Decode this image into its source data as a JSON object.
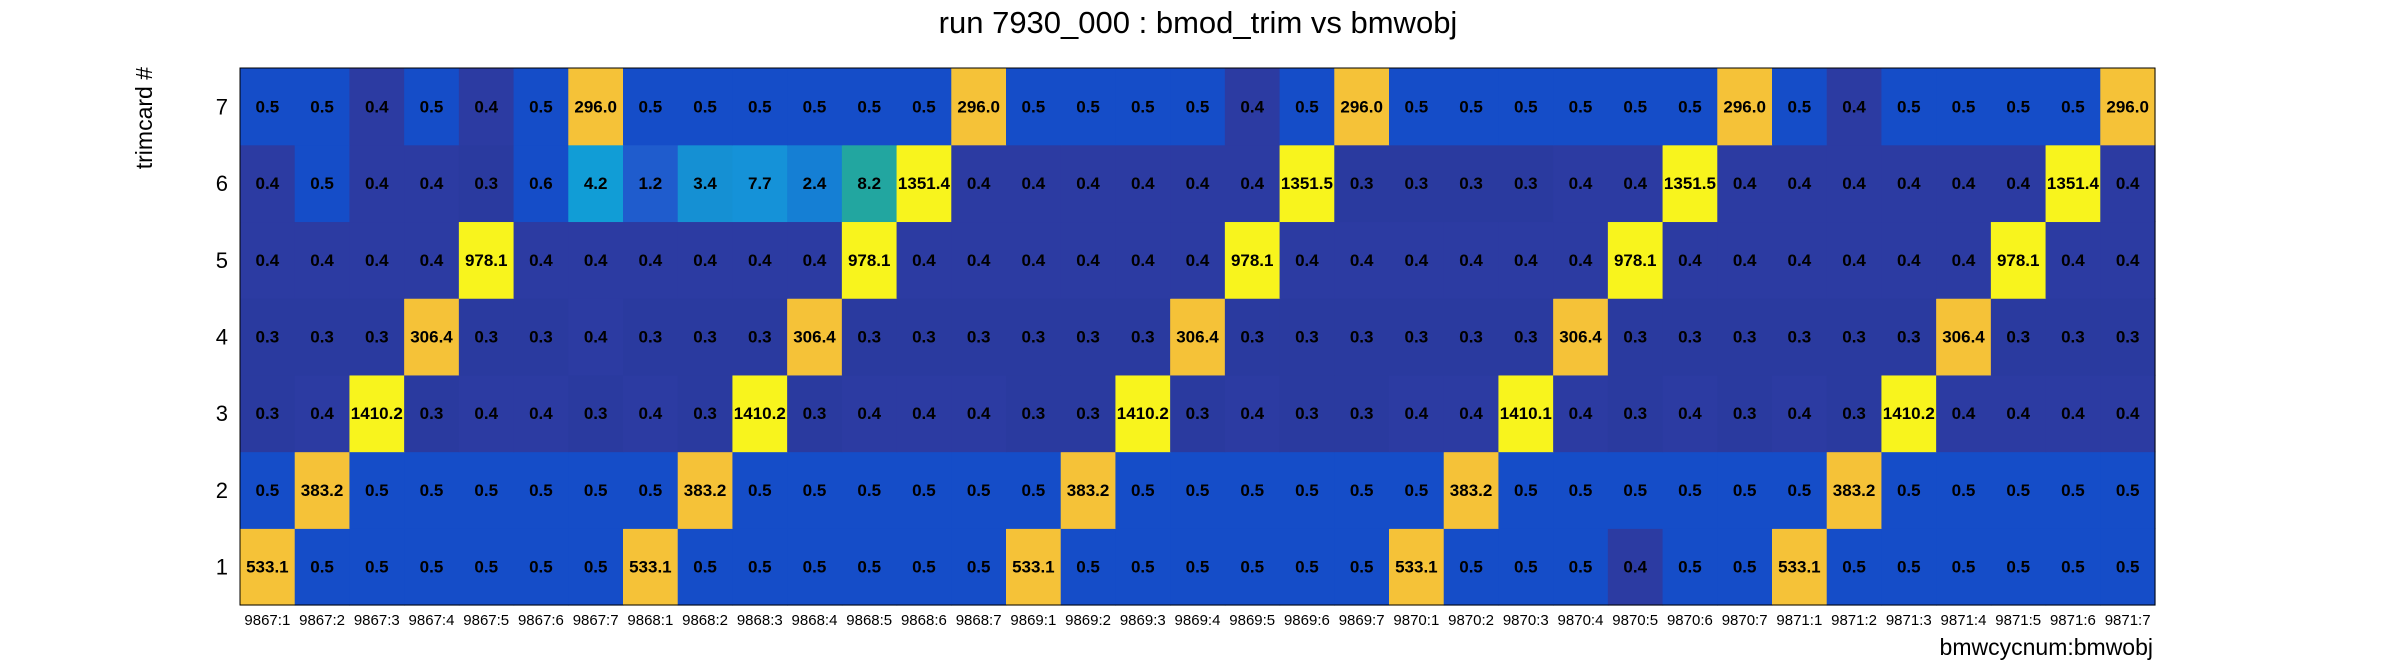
{
  "chart_data": {
    "type": "heatmap",
    "title": "run 7930_000 : bmod_trim vs bmwobj",
    "xlabel": "bmwcycnum:bmwobj",
    "ylabel": "trimcard #",
    "x_categories": [
      "9867:1",
      "9867:2",
      "9867:3",
      "9867:4",
      "9867:5",
      "9867:6",
      "9867:7",
      "9868:1",
      "9868:2",
      "9868:3",
      "9868:4",
      "9868:5",
      "9868:6",
      "9868:7",
      "9869:1",
      "9869:2",
      "9869:3",
      "9869:4",
      "9869:5",
      "9869:6",
      "9869:7",
      "9870:1",
      "9870:2",
      "9870:3",
      "9870:4",
      "9870:5",
      "9870:6",
      "9870:7",
      "9871:1",
      "9871:2",
      "9871:3",
      "9871:4",
      "9871:5",
      "9871:6",
      "9871:7"
    ],
    "y_categories": [
      "1",
      "2",
      "3",
      "4",
      "5",
      "6",
      "7"
    ],
    "values": [
      [
        533.1,
        0.5,
        0.5,
        0.5,
        0.5,
        0.5,
        0.5,
        533.1,
        0.5,
        0.5,
        0.5,
        0.5,
        0.5,
        0.5,
        533.1,
        0.5,
        0.5,
        0.5,
        0.5,
        0.5,
        0.5,
        533.1,
        0.5,
        0.5,
        0.5,
        0.4,
        0.5,
        0.5,
        533.1,
        0.5,
        0.5,
        0.5,
        0.5,
        0.5,
        0.5
      ],
      [
        0.5,
        383.2,
        0.5,
        0.5,
        0.5,
        0.5,
        0.5,
        0.5,
        383.2,
        0.5,
        0.5,
        0.5,
        0.5,
        0.5,
        0.5,
        383.2,
        0.5,
        0.5,
        0.5,
        0.5,
        0.5,
        0.5,
        383.2,
        0.5,
        0.5,
        0.5,
        0.5,
        0.5,
        0.5,
        383.2,
        0.5,
        0.5,
        0.5,
        0.5,
        0.5
      ],
      [
        0.3,
        0.4,
        1410.2,
        0.3,
        0.4,
        0.4,
        0.3,
        0.4,
        0.3,
        1410.2,
        0.3,
        0.4,
        0.4,
        0.4,
        0.3,
        0.3,
        1410.2,
        0.3,
        0.4,
        0.3,
        0.3,
        0.4,
        0.4,
        1410.1,
        0.4,
        0.3,
        0.4,
        0.3,
        0.4,
        0.3,
        1410.2,
        0.4,
        0.4,
        0.4,
        0.4
      ],
      [
        0.3,
        0.3,
        0.3,
        306.4,
        0.3,
        0.3,
        0.4,
        0.3,
        0.3,
        0.3,
        306.4,
        0.3,
        0.3,
        0.3,
        0.3,
        0.3,
        0.3,
        306.4,
        0.3,
        0.3,
        0.3,
        0.3,
        0.3,
        0.3,
        306.4,
        0.3,
        0.3,
        0.3,
        0.3,
        0.3,
        0.3,
        306.4,
        0.3,
        0.3,
        0.3
      ],
      [
        0.4,
        0.4,
        0.4,
        0.4,
        978.1,
        0.4,
        0.4,
        0.4,
        0.4,
        0.4,
        0.4,
        978.1,
        0.4,
        0.4,
        0.4,
        0.4,
        0.4,
        0.4,
        978.1,
        0.4,
        0.4,
        0.4,
        0.4,
        0.4,
        0.4,
        978.1,
        0.4,
        0.4,
        0.4,
        0.4,
        0.4,
        0.4,
        978.1,
        0.4,
        0.4
      ],
      [
        0.4,
        0.5,
        0.4,
        0.4,
        0.3,
        0.6,
        4.2,
        1.2,
        3.4,
        7.7,
        2.4,
        8.2,
        1351.4,
        0.4,
        0.4,
        0.4,
        0.4,
        0.4,
        0.4,
        1351.5,
        0.3,
        0.3,
        0.3,
        0.3,
        0.4,
        0.4,
        1351.5,
        0.4,
        0.4,
        0.4,
        0.4,
        0.4,
        0.4,
        1351.4,
        0.4
      ],
      [
        0.5,
        0.5,
        0.4,
        0.5,
        0.4,
        0.5,
        296.0,
        0.5,
        0.5,
        0.5,
        0.5,
        0.5,
        0.5,
        296.0,
        0.5,
        0.5,
        0.5,
        0.5,
        0.4,
        0.5,
        296.0,
        0.5,
        0.5,
        0.5,
        0.5,
        0.5,
        0.5,
        296.0,
        0.5,
        0.4,
        0.5,
        0.5,
        0.5,
        0.5,
        296.0
      ]
    ],
    "colors": {
      "v_0.3": "#2a3a9f",
      "v_0.4": "#2c3ba2",
      "v_0.5": "#154dc8",
      "v_0.6": "#154dc8",
      "v_1.2": "#1f5ccd",
      "v_2.4": "#157fd4",
      "v_3.4": "#1590d3",
      "v_4.2": "#119dd6",
      "v_7.7": "#1592d8",
      "v_8.2": "#22a6a0",
      "high_warm": "#f5c238",
      "high_bright": "#f8f41d"
    },
    "grid": false
  }
}
